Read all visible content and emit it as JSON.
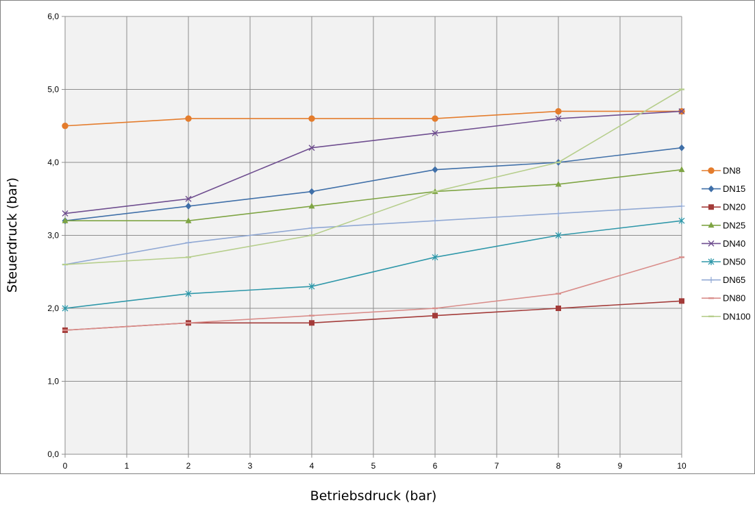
{
  "chart_data": {
    "type": "line",
    "title": "",
    "xlabel": "Betriebsdruck (bar)",
    "ylabel": "Steuerdruck (bar)",
    "x_ticks": [
      "0",
      "1",
      "2",
      "3",
      "4",
      "5",
      "6",
      "7",
      "8",
      "9",
      "10"
    ],
    "y_ticks": [
      "0,0",
      "1,0",
      "2,0",
      "3,0",
      "4,0",
      "5,0",
      "6,0"
    ],
    "xlim": [
      0,
      10
    ],
    "ylim": [
      0,
      6
    ],
    "grid": true,
    "legend_position": "right",
    "x": [
      0,
      2,
      4,
      6,
      8,
      10
    ],
    "series": [
      {
        "name": "DN8",
        "color": "#E47C2C",
        "marker": "circle",
        "values": [
          4.5,
          4.6,
          4.6,
          4.6,
          4.7,
          4.7
        ]
      },
      {
        "name": "DN15",
        "color": "#3F6FA8",
        "marker": "diamond",
        "values": [
          3.2,
          3.4,
          3.6,
          3.9,
          4.0,
          4.2
        ]
      },
      {
        "name": "DN20",
        "color": "#A33B39",
        "marker": "square",
        "values": [
          1.7,
          1.8,
          1.8,
          1.9,
          2.0,
          2.1
        ]
      },
      {
        "name": "DN25",
        "color": "#7EA443",
        "marker": "triangle",
        "values": [
          3.2,
          3.2,
          3.4,
          3.6,
          3.7,
          3.9
        ]
      },
      {
        "name": "DN40",
        "color": "#6E4D8F",
        "marker": "x",
        "values": [
          3.3,
          3.5,
          4.2,
          4.4,
          4.6,
          4.7
        ]
      },
      {
        "name": "DN50",
        "color": "#2E97A9",
        "marker": "star",
        "values": [
          2.0,
          2.2,
          2.3,
          2.7,
          3.0,
          3.2
        ]
      },
      {
        "name": "DN65",
        "color": "#90A8D4",
        "marker": "plus",
        "values": [
          2.6,
          2.9,
          3.1,
          3.2,
          3.3,
          3.4
        ]
      },
      {
        "name": "DN80",
        "color": "#D98D8A",
        "marker": "dash",
        "values": [
          1.7,
          1.8,
          1.9,
          2.0,
          2.2,
          2.7
        ]
      },
      {
        "name": "DN100",
        "color": "#B6CE8C",
        "marker": "dash",
        "values": [
          2.6,
          2.7,
          3.0,
          3.6,
          4.0,
          5.0
        ]
      }
    ]
  }
}
